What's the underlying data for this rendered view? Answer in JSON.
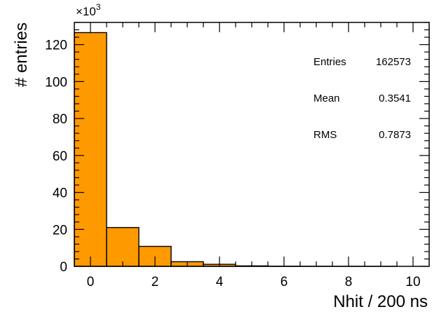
{
  "chart_data": {
    "type": "bar",
    "title": "",
    "xlabel": "Nhit / 200 ns",
    "ylabel": "# entries",
    "y_multiplier": {
      "base": "×10",
      "exponent": "3"
    },
    "xlim": [
      -0.5,
      10.5
    ],
    "ylim": [
      0,
      132000
    ],
    "bin_width": 1,
    "bin_centers": [
      0,
      1,
      2,
      3,
      4,
      5,
      6,
      7,
      8,
      9,
      10
    ],
    "values": [
      126500,
      21000,
      10800,
      2500,
      1100,
      250,
      80,
      30,
      10,
      5,
      0
    ],
    "x_ticks": [
      {
        "value": 0,
        "label": "0"
      },
      {
        "value": 2,
        "label": "2"
      },
      {
        "value": 4,
        "label": "4"
      },
      {
        "value": 6,
        "label": "6"
      },
      {
        "value": 8,
        "label": "8"
      },
      {
        "value": 10,
        "label": "10"
      }
    ],
    "y_ticks": [
      {
        "value": 0,
        "label": "0"
      },
      {
        "value": 20000,
        "label": "20"
      },
      {
        "value": 40000,
        "label": "40"
      },
      {
        "value": 60000,
        "label": "60"
      },
      {
        "value": 80000,
        "label": "80"
      },
      {
        "value": 100000,
        "label": "100"
      },
      {
        "value": 120000,
        "label": "120"
      }
    ],
    "grid": false,
    "bar_color": "#ff9900",
    "stats": [
      {
        "name": "Entries",
        "value": "162573"
      },
      {
        "name": "Mean",
        "value": "0.3541"
      },
      {
        "name": "RMS",
        "value": "0.7873"
      }
    ]
  }
}
